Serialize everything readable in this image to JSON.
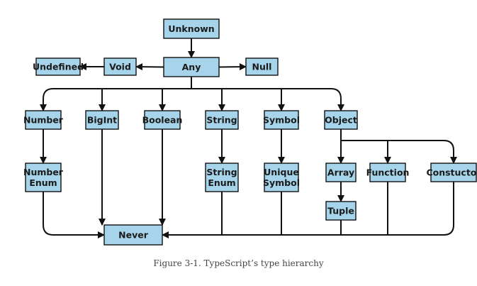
{
  "diagram": {
    "nodes": {
      "unknown": "Unknown",
      "any": "Any",
      "void": "Void",
      "undefined": "Undefined",
      "null": "Null",
      "number": "Number",
      "bigint": "BigInt",
      "boolean": "Boolean",
      "string": "String",
      "symbol": "Symbol",
      "object": "Object",
      "number_enum": [
        "Number",
        "Enum"
      ],
      "string_enum": [
        "String",
        "Enum"
      ],
      "unique_symbol": [
        "Unique",
        "Symbol"
      ],
      "array": "Array",
      "function": "Function",
      "constructor": "Constuctor",
      "tuple": "Tuple",
      "never": "Never"
    },
    "edges": [
      [
        "unknown",
        "any"
      ],
      [
        "any",
        "void"
      ],
      [
        "void",
        "undefined"
      ],
      [
        "any",
        "null"
      ],
      [
        "any",
        "number"
      ],
      [
        "any",
        "bigint"
      ],
      [
        "any",
        "boolean"
      ],
      [
        "any",
        "string"
      ],
      [
        "any",
        "symbol"
      ],
      [
        "any",
        "object"
      ],
      [
        "number",
        "number_enum"
      ],
      [
        "string",
        "string_enum"
      ],
      [
        "symbol",
        "unique_symbol"
      ],
      [
        "object",
        "array"
      ],
      [
        "object",
        "function"
      ],
      [
        "object",
        "constructor"
      ],
      [
        "array",
        "tuple"
      ],
      [
        "number_enum",
        "never"
      ],
      [
        "bigint",
        "never"
      ],
      [
        "boolean",
        "never"
      ],
      [
        "string_enum",
        "never"
      ],
      [
        "unique_symbol",
        "never"
      ],
      [
        "tuple",
        "never"
      ],
      [
        "function",
        "never"
      ],
      [
        "constructor",
        "never"
      ]
    ]
  },
  "caption": "Figure 3-1. TypeScript’s type hierarchy"
}
